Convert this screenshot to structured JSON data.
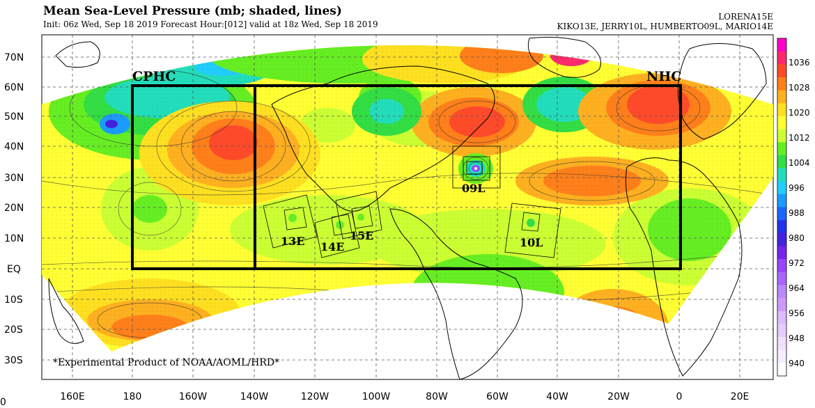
{
  "header": {
    "title": "Mean Sea-Level Pressure (mb; shaded, lines)",
    "subtitle": "Init: 06z Wed, Sep 18 2019  Forecast Hour:[012]  valid at 18z Wed, Sep 18 2019",
    "storms_line1": "LORENA15E",
    "storms_line2": "KIKO13E, JERRY10L, HUMBERTO09L, MARIO14E"
  },
  "map": {
    "lat_labels": [
      "70N",
      "60N",
      "50N",
      "40N",
      "30N",
      "20N",
      "10N",
      "EQ",
      "10S",
      "20S",
      "30S"
    ],
    "lon_labels": [
      "160E",
      "180",
      "160W",
      "140W",
      "120W",
      "100W",
      "80W",
      "60W",
      "40W",
      "20W",
      "0",
      "20E"
    ],
    "regions": [
      {
        "label": "CPHC"
      },
      {
        "label": "NHC"
      }
    ],
    "storms": [
      {
        "label": "09L"
      },
      {
        "label": "13E"
      },
      {
        "label": "14E"
      },
      {
        "label": "15E"
      },
      {
        "label": "10L"
      }
    ],
    "footnote": "*Experimental Product of NOAA/AOML/HRD*",
    "corner_label": "0"
  },
  "colorbar": {
    "labels": [
      "1036",
      "1028",
      "1020",
      "1012",
      "1004",
      "996",
      "988",
      "980",
      "972",
      "964",
      "956",
      "948",
      "940"
    ],
    "colors": [
      "#ff00cc",
      "#ff2a6e",
      "#ff4a2a",
      "#ff7f1a",
      "#ffb020",
      "#ffe020",
      "#ffff33",
      "#ccff33",
      "#66ee22",
      "#33dd44",
      "#22ddbb",
      "#22ccff",
      "#1a9cff",
      "#1a66ff",
      "#2233ee",
      "#4422dd",
      "#7722ee",
      "#9944ff",
      "#aa66ff",
      "#bb88ff",
      "#cc99ff",
      "#ddbbff",
      "#e6ccff",
      "#f0e0ff",
      "#f6eeff",
      "#ffffff"
    ]
  }
}
